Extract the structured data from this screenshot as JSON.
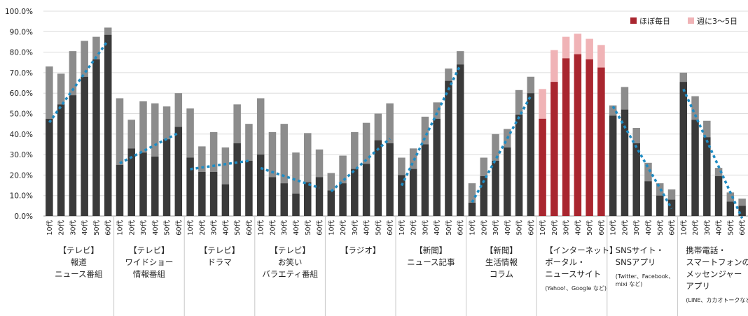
{
  "chart_data": {
    "type": "bar",
    "stacked": true,
    "ylim": [
      0,
      100
    ],
    "y_ticks": [
      "0.0%",
      "10.0%",
      "20.0%",
      "30.0%",
      "40.0%",
      "50.0%",
      "60.0%",
      "70.0%",
      "80.0%",
      "90.0%",
      "100.0%"
    ],
    "age_labels": [
      "10代",
      "20代",
      "30代",
      "40代",
      "50代",
      "60代"
    ],
    "legend": [
      {
        "name": "ほぼ毎日",
        "color": "#a9262f"
      },
      {
        "name": "週に3～5日",
        "color": "#f0b3b6"
      }
    ],
    "colors": {
      "daily": "#3a3a3a",
      "weekly": "#8c8c8c",
      "highlight_daily": "#a9262f",
      "highlight_weekly": "#f0b3b6",
      "trend": "#1f8cc4"
    },
    "groups": [
      {
        "label_lines": [
          "【テレビ】",
          "報道",
          "ニュース番組"
        ],
        "note_lines": [],
        "daily": [
          47.5,
          54.5,
          59.0,
          68.0,
          76.5,
          88.5
        ],
        "weekly_total": [
          73.0,
          69.5,
          80.5,
          85.5,
          87.5,
          92.0
        ]
      },
      {
        "label_lines": [
          "【テレビ】",
          "ワイドショー",
          "情報番組"
        ],
        "note_lines": [],
        "daily": [
          25.0,
          33.0,
          31.0,
          29.0,
          37.5,
          43.5
        ],
        "weekly_total": [
          57.5,
          47.0,
          56.0,
          55.0,
          53.5,
          60.0
        ]
      },
      {
        "label_lines": [
          "【テレビ】",
          "ドラマ"
        ],
        "note_lines": [],
        "daily": [
          28.5,
          21.5,
          21.5,
          15.5,
          35.5,
          27.0
        ],
        "weekly_total": [
          52.5,
          34.0,
          41.0,
          33.5,
          54.5,
          45.0
        ]
      },
      {
        "label_lines": [
          "【テレビ】",
          "お笑い",
          "バラエティ番組"
        ],
        "note_lines": [],
        "daily": [
          30.0,
          19.0,
          16.0,
          11.0,
          16.5,
          19.0
        ],
        "weekly_total": [
          57.5,
          41.0,
          45.0,
          31.0,
          40.5,
          32.5
        ]
      },
      {
        "label_lines": [
          "【ラジオ】"
        ],
        "note_lines": [],
        "daily": [
          12.5,
          16.0,
          23.0,
          25.5,
          37.0,
          35.5
        ],
        "weekly_total": [
          21.0,
          29.5,
          41.0,
          45.5,
          50.0,
          55.0
        ]
      },
      {
        "label_lines": [
          "【新聞】",
          "ニュース記事"
        ],
        "note_lines": [],
        "daily": [
          20.0,
          23.0,
          35.0,
          47.5,
          66.0,
          74.0
        ],
        "weekly_total": [
          28.5,
          33.0,
          48.5,
          55.5,
          72.0,
          80.5
        ]
      },
      {
        "label_lines": [
          "【新聞】",
          "生活情報",
          "コラム"
        ],
        "note_lines": [],
        "daily": [
          6.5,
          19.5,
          27.0,
          33.5,
          49.5,
          60.0
        ],
        "weekly_total": [
          16.0,
          28.5,
          40.0,
          42.5,
          61.5,
          68.0
        ]
      },
      {
        "label_lines": [
          "【インターネット】",
          "ポータル・",
          "ニュースサイト"
        ],
        "note_lines": [
          "(Yahoo!、Google など)"
        ],
        "highlight": true,
        "daily": [
          47.5,
          65.5,
          77.0,
          79.0,
          76.5,
          72.5
        ],
        "weekly_total": [
          62.0,
          81.0,
          87.5,
          89.0,
          86.5,
          83.5
        ]
      },
      {
        "label_lines": [
          "SNSサイト・",
          "SNSアプリ"
        ],
        "note_lines": [
          "(Twitter、Facebook、",
          "mixi など)"
        ],
        "daily": [
          49.0,
          52.0,
          35.5,
          17.0,
          10.0,
          8.0
        ],
        "weekly_total": [
          54.0,
          63.0,
          43.0,
          26.0,
          16.0,
          13.0
        ]
      },
      {
        "label_lines": [
          "携帯電話・",
          "スマートフォンの",
          "メッセンジャー",
          "アプリ"
        ],
        "note_lines": [
          "(LINE、カカオトークなど)"
        ],
        "daily": [
          65.5,
          47.0,
          38.5,
          19.5,
          7.0,
          5.0
        ],
        "weekly_total": [
          70.0,
          58.5,
          46.5,
          23.5,
          11.5,
          8.5
        ]
      }
    ]
  }
}
